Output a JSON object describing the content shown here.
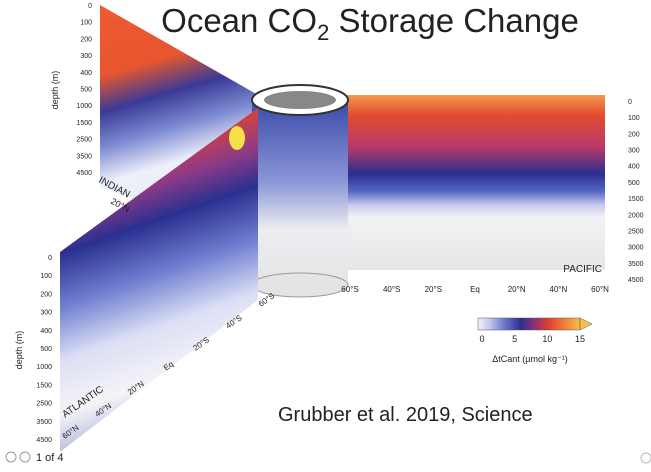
{
  "title": {
    "text": "Ocean CO",
    "subscript": "2",
    "text_after": " Storage Change"
  },
  "citation": "Grubber et al. 2019, Science",
  "pager": "1 of 4",
  "indian": {
    "name": "INDIAN",
    "depth_label": "depth (m)",
    "depth_ticks": [
      0,
      100,
      200,
      300,
      400,
      500,
      1000,
      1500,
      2500,
      3500,
      4500
    ],
    "lat_labels": [
      "20°N"
    ]
  },
  "atlantic": {
    "name": "ATLANTIC",
    "depth_label": "depth (m)",
    "depth_ticks": [
      0,
      100,
      200,
      300,
      400,
      500,
      1000,
      1500,
      2500,
      3500,
      4500
    ],
    "lat_labels": [
      "60°S",
      "40°S",
      "20°S",
      "Eq",
      "20°N",
      "40°N",
      "60°N"
    ]
  },
  "pacific": {
    "name": "PACIFIC",
    "depth_ticks": [
      0,
      100,
      200,
      300,
      400,
      500,
      1500,
      2000,
      2500,
      3000,
      3500,
      4500
    ],
    "lat_labels": [
      "60°S",
      "40°S",
      "20°S",
      "Eq",
      "20°N",
      "40°N",
      "60°N"
    ]
  },
  "colorbar": {
    "ticks": [
      0,
      5,
      10,
      15
    ],
    "label": "ΔtCant (µmol kg⁻¹)"
  }
}
